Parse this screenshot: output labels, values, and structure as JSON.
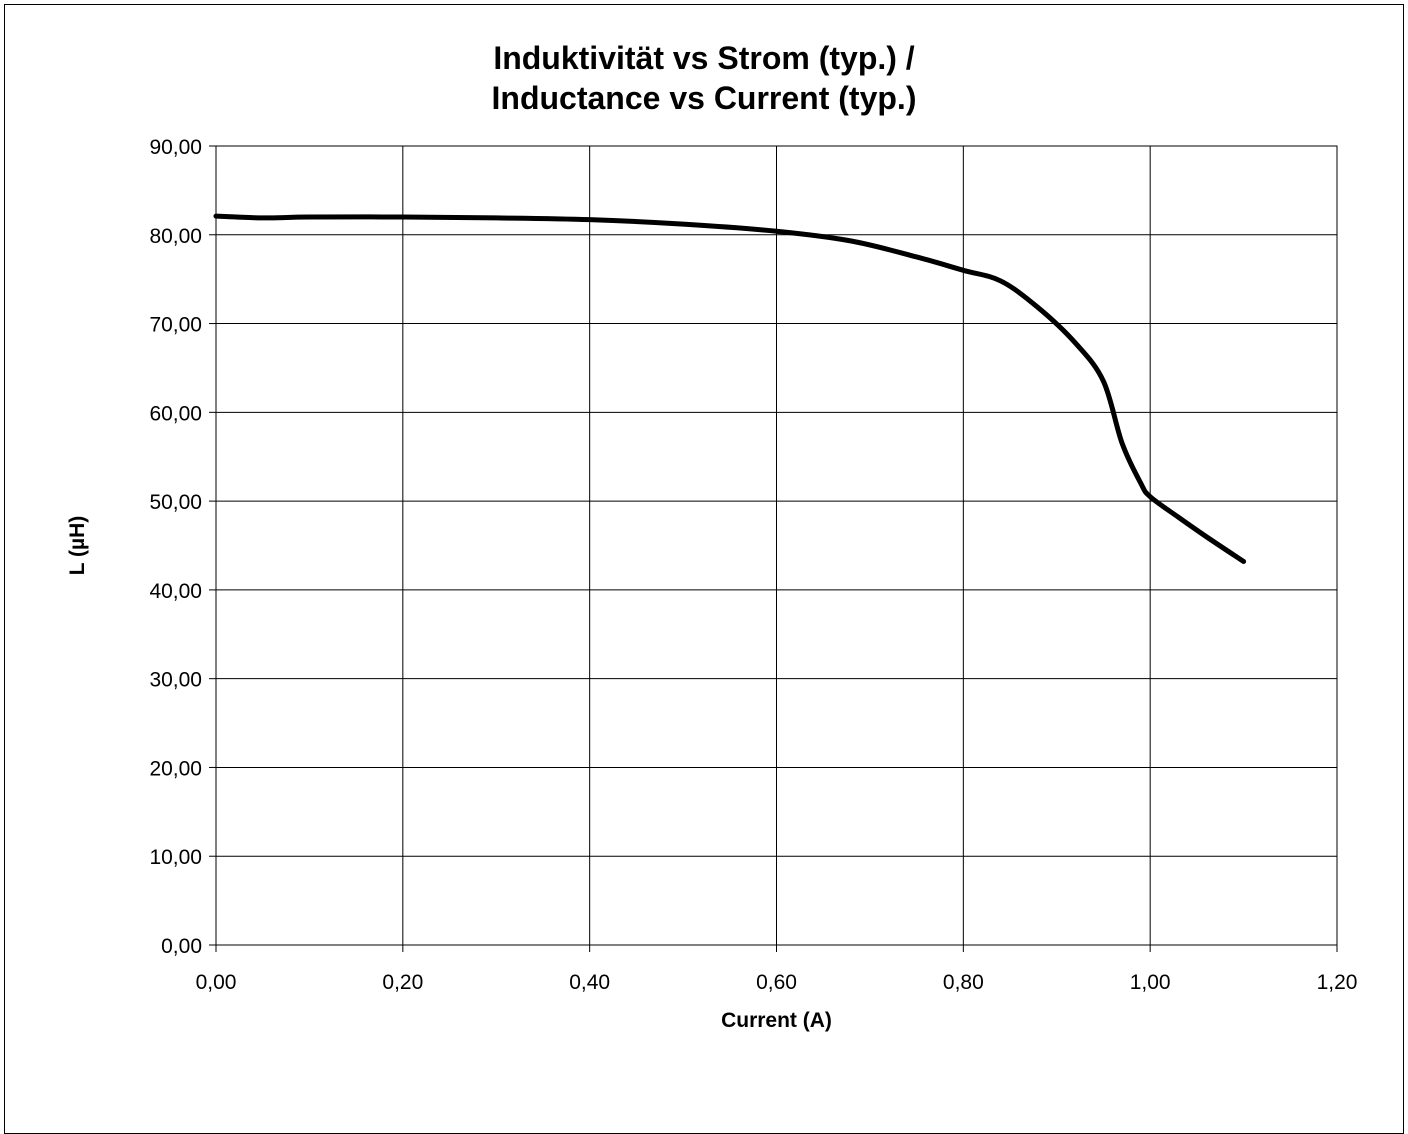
{
  "chart_data": {
    "type": "line",
    "title_line1": "Induktivität vs Strom (typ.) /",
    "title_line2": "Inductance vs Current (typ.)",
    "xlabel": "Current (A)",
    "ylabel": "L (µH)",
    "xlim": [
      0,
      1.2
    ],
    "ylim": [
      0,
      90
    ],
    "x_ticks": [
      "0,00",
      "0,20",
      "0,40",
      "0,60",
      "0,80",
      "1,00",
      "1,20"
    ],
    "y_ticks": [
      "0,00",
      "10,00",
      "20,00",
      "30,00",
      "40,00",
      "50,00",
      "60,00",
      "70,00",
      "80,00",
      "90,00"
    ],
    "grid": true,
    "legend": "none",
    "series": [
      {
        "color": "#000000",
        "x": [
          0.0,
          0.05,
          0.1,
          0.2,
          0.3,
          0.4,
          0.5,
          0.6,
          0.68,
          0.75,
          0.8,
          0.84,
          0.88,
          0.92,
          0.95,
          0.97,
          0.99,
          1.0,
          1.03,
          1.06,
          1.1
        ],
        "y": [
          82.1,
          81.9,
          82.0,
          82.0,
          81.9,
          81.7,
          81.2,
          80.4,
          79.3,
          77.5,
          76.0,
          74.8,
          71.8,
          67.8,
          63.5,
          56.5,
          52.0,
          50.5,
          48.2,
          46.0,
          43.2
        ]
      }
    ]
  }
}
